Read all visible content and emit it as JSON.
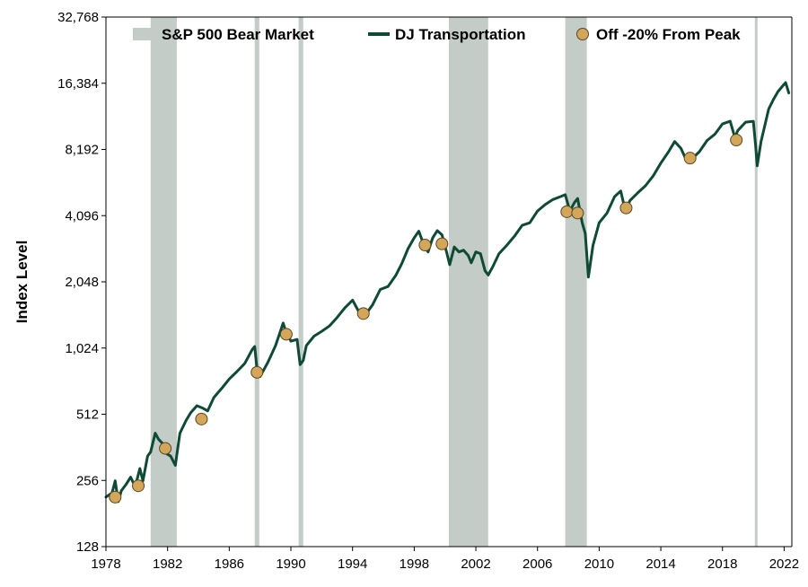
{
  "chart_data": {
    "type": "line",
    "ylabel": "Index Level",
    "xlabel": "",
    "y_scale": "log2",
    "ylim": [
      128,
      32768
    ],
    "xlim": [
      1978,
      2022.5
    ],
    "x_ticks": [
      1978,
      1982,
      1986,
      1990,
      1994,
      1998,
      2002,
      2006,
      2010,
      2014,
      2018,
      2022
    ],
    "x_tick_labels": [
      "1978",
      "1982",
      "1986",
      "1990",
      "1994",
      "1998",
      "2002",
      "2006",
      "2010",
      "2014",
      "2018",
      "2022"
    ],
    "y_ticks": [
      128,
      256,
      512,
      1024,
      2048,
      4096,
      8192,
      16384,
      32768
    ],
    "y_tick_labels": [
      "128",
      "256",
      "512",
      "1,024",
      "2,048",
      "4,096",
      "8,192",
      "16,384",
      "32,768"
    ],
    "grid": false,
    "legend_position": "top",
    "legend": {
      "bear": "S&P 500 Bear Market",
      "line": "DJ Transportation",
      "points": "Off -20% From Peak"
    },
    "bear_markets": [
      [
        1980.9,
        1982.6
      ],
      [
        1987.65,
        1987.95
      ],
      [
        1990.5,
        1990.8
      ],
      [
        2000.25,
        2002.8
      ],
      [
        2007.8,
        2009.2
      ],
      [
        2020.1,
        2020.25
      ]
    ],
    "series": [
      {
        "kind": "line",
        "x": [
          1978.0,
          1978.4,
          1978.6,
          1978.8,
          1979.0,
          1979.3,
          1979.6,
          1979.9,
          1980.2,
          1980.4,
          1980.7,
          1980.9,
          1981.2,
          1981.4,
          1981.7,
          1981.9,
          1982.2,
          1982.5,
          1982.8,
          1983.2,
          1983.5,
          1983.9,
          1984.3,
          1984.6,
          1985.0,
          1985.5,
          1986.0,
          1986.5,
          1987.0,
          1987.5,
          1987.65,
          1987.8,
          1988.0,
          1988.5,
          1989.0,
          1989.5,
          1989.7,
          1989.85,
          1990.0,
          1990.4,
          1990.6,
          1990.8,
          1991.0,
          1991.5,
          1992.0,
          1992.5,
          1993.0,
          1993.5,
          1994.0,
          1994.4,
          1994.9,
          1995.3,
          1995.8,
          1996.3,
          1996.8,
          1997.2,
          1997.6,
          1998.0,
          1998.3,
          1998.6,
          1998.9,
          1999.2,
          1999.5,
          1999.8,
          2000.1,
          2000.3,
          2000.6,
          2000.9,
          2001.2,
          2001.5,
          2001.7,
          2002.0,
          2002.3,
          2002.6,
          2002.8,
          2003.1,
          2003.5,
          2004.0,
          2004.5,
          2005.0,
          2005.5,
          2006.0,
          2006.5,
          2007.0,
          2007.5,
          2007.8,
          2008.1,
          2008.4,
          2008.6,
          2008.9,
          2009.1,
          2009.3,
          2009.6,
          2010.0,
          2010.5,
          2011.0,
          2011.4,
          2011.7,
          2012.0,
          2012.5,
          2013.0,
          2013.5,
          2014.0,
          2014.5,
          2014.9,
          2015.3,
          2015.7,
          2016.0,
          2016.5,
          2017.0,
          2017.5,
          2018.0,
          2018.5,
          2018.8,
          2019.0,
          2019.5,
          2020.0,
          2020.15,
          2020.25,
          2020.5,
          2021.0,
          2021.3,
          2021.6,
          2021.9,
          2022.1,
          2022.3
        ],
        "y": [
          215,
          225,
          255,
          205,
          230,
          245,
          265,
          240,
          290,
          255,
          330,
          345,
          420,
          395,
          375,
          340,
          330,
          300,
          420,
          480,
          520,
          560,
          545,
          530,
          610,
          670,
          740,
          800,
          870,
          1010,
          1040,
          820,
          760,
          880,
          1050,
          1330,
          1200,
          1160,
          1100,
          1120,
          860,
          900,
          1050,
          1160,
          1220,
          1290,
          1410,
          1560,
          1690,
          1500,
          1470,
          1610,
          1890,
          1950,
          2190,
          2480,
          2900,
          3250,
          3480,
          3050,
          2800,
          3250,
          3500,
          3350,
          2800,
          2450,
          2950,
          2800,
          2850,
          2700,
          2500,
          2800,
          2750,
          2300,
          2200,
          2400,
          2750,
          3000,
          3300,
          3700,
          3800,
          4300,
          4600,
          4850,
          5000,
          5100,
          4300,
          4700,
          4900,
          3800,
          3400,
          2150,
          3000,
          3800,
          4200,
          5000,
          5300,
          4300,
          4800,
          5200,
          5600,
          6200,
          7100,
          8000,
          8900,
          8300,
          7200,
          7400,
          8000,
          9000,
          9600,
          10700,
          11000,
          9300,
          10000,
          10900,
          11000,
          8500,
          6900,
          8900,
          12500,
          13800,
          15000,
          15900,
          16500,
          14800
        ]
      },
      {
        "kind": "points",
        "x": [
          1978.6,
          1980.1,
          1981.85,
          1984.2,
          1987.8,
          1989.7,
          1994.7,
          1998.7,
          1999.8,
          2007.9,
          2008.6,
          2011.75,
          2015.9,
          2018.9
        ],
        "y": [
          215,
          242,
          358,
          487,
          794,
          1183,
          1469,
          3010,
          3050,
          4270,
          4210,
          4440,
          7480,
          9040
        ]
      }
    ],
    "colors": {
      "line": "#0e4a36",
      "bear": "#c3ccc6",
      "point_fill": "#d3a65a",
      "point_stroke": "#5a4626",
      "axis": "#000000"
    }
  }
}
